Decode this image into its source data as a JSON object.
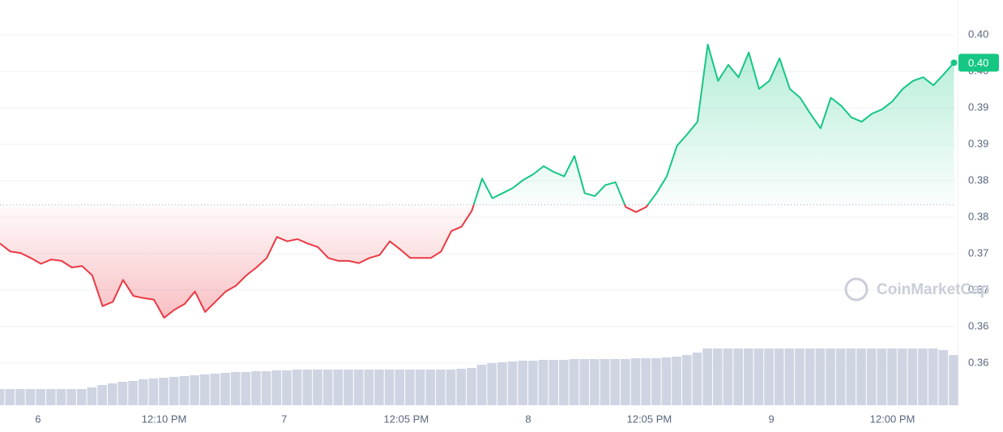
{
  "chart_data": {
    "type": "line",
    "x": [
      0,
      1,
      2,
      3,
      4,
      5,
      6,
      7,
      8,
      9,
      10,
      11,
      12,
      13,
      14,
      15,
      16,
      17,
      18,
      19,
      20,
      21,
      22,
      23,
      24,
      25,
      26,
      27,
      28,
      29,
      30,
      31,
      32,
      33,
      34,
      35,
      36,
      37,
      38,
      39,
      40,
      41,
      42,
      43,
      44,
      45,
      46,
      47,
      48,
      49,
      50,
      51,
      52,
      53,
      54,
      55,
      56,
      57,
      58,
      59,
      60,
      61,
      62,
      63,
      64,
      65,
      66,
      67,
      68,
      69,
      70,
      71,
      72,
      73,
      74,
      75,
      76,
      77,
      78,
      79,
      80,
      81,
      82,
      83,
      84,
      85,
      86,
      87,
      88,
      89,
      90,
      91,
      92,
      93
    ],
    "series": [
      {
        "name": "Price",
        "values": [
          0.3754,
          0.3743,
          0.3741,
          0.3734,
          0.3726,
          0.3732,
          0.373,
          0.3721,
          0.3723,
          0.371,
          0.3668,
          0.3674,
          0.3704,
          0.3682,
          0.3679,
          0.3677,
          0.3652,
          0.3663,
          0.3671,
          0.3688,
          0.366,
          0.3674,
          0.3688,
          0.3696,
          0.371,
          0.3721,
          0.3734,
          0.3763,
          0.3757,
          0.376,
          0.3754,
          0.3749,
          0.3734,
          0.373,
          0.373,
          0.3727,
          0.3734,
          0.3738,
          0.3757,
          0.3746,
          0.3734,
          0.3734,
          0.3734,
          0.3743,
          0.3771,
          0.3777,
          0.3799,
          0.3843,
          0.3816,
          0.3823,
          0.383,
          0.3841,
          0.3849,
          0.386,
          0.3852,
          0.3846,
          0.3874,
          0.3823,
          0.3819,
          0.3834,
          0.3838,
          0.3804,
          0.3797,
          0.3804,
          0.3823,
          0.3846,
          0.3888,
          0.3904,
          0.3921,
          0.4027,
          0.3977,
          0.3999,
          0.3982,
          0.4016,
          0.3966,
          0.3977,
          0.4008,
          0.3966,
          0.3954,
          0.3932,
          0.3912,
          0.3954,
          0.3943,
          0.3927,
          0.3921,
          0.3932,
          0.3938,
          0.3949,
          0.3966,
          0.3977,
          0.3982,
          0.3971,
          0.3986,
          0.4002
        ]
      }
    ],
    "up_color": "#16c784",
    "down_color": "#ea3943",
    "baseline": 0.3807,
    "current_price_label": "0.40",
    "volume": [
      20,
      20,
      20,
      20,
      20,
      20,
      20,
      20,
      20,
      22,
      25,
      27,
      29,
      30,
      32,
      33,
      34,
      35,
      36,
      37,
      38,
      39,
      40,
      41,
      41,
      42,
      42,
      43,
      43,
      44,
      44,
      44,
      44,
      44,
      44,
      44,
      44,
      44,
      44,
      44,
      44,
      44,
      44,
      44,
      44,
      45,
      46,
      50,
      52,
      53,
      54,
      55,
      55,
      56,
      56,
      56,
      57,
      57,
      57,
      57,
      57,
      57,
      58,
      58,
      58,
      59,
      60,
      62,
      65,
      70,
      70,
      70,
      70,
      70,
      70,
      70,
      70,
      70,
      70,
      70,
      70,
      70,
      70,
      70,
      70,
      70,
      70,
      70,
      70,
      70,
      70,
      70,
      68,
      62
    ],
    "volume_lim": [
      0,
      100
    ],
    "volume_color": "#cfd4e3",
    "xlim": [
      0,
      93.2
    ],
    "xticks": [
      {
        "value": 3.7,
        "label": "6"
      },
      {
        "value": 16.0,
        "label": "12:10 PM"
      },
      {
        "value": 27.7,
        "label": "7"
      },
      {
        "value": 39.6,
        "label": "12:05 PM"
      },
      {
        "value": 51.5,
        "label": "8"
      },
      {
        "value": 63.3,
        "label": "12:05 PM"
      },
      {
        "value": 75.2,
        "label": "9"
      },
      {
        "value": 87.0,
        "label": "12:00 PM"
      }
    ],
    "ylim": [
      0.3532,
      0.4088
    ],
    "yticks": [
      {
        "value": 0.404,
        "label": "0.40"
      },
      {
        "value": 0.399,
        "label": "0.40"
      },
      {
        "value": 0.394,
        "label": "0.39"
      },
      {
        "value": 0.389,
        "label": "0.39"
      },
      {
        "value": 0.384,
        "label": "0.38"
      },
      {
        "value": 0.379,
        "label": "0.38"
      },
      {
        "value": 0.374,
        "label": "0.37"
      },
      {
        "value": 0.369,
        "label": "0.37"
      },
      {
        "value": 0.364,
        "label": "0.36"
      },
      {
        "value": 0.359,
        "label": "0.36"
      }
    ],
    "grid": true,
    "watermark": "CoinMarketCap"
  }
}
